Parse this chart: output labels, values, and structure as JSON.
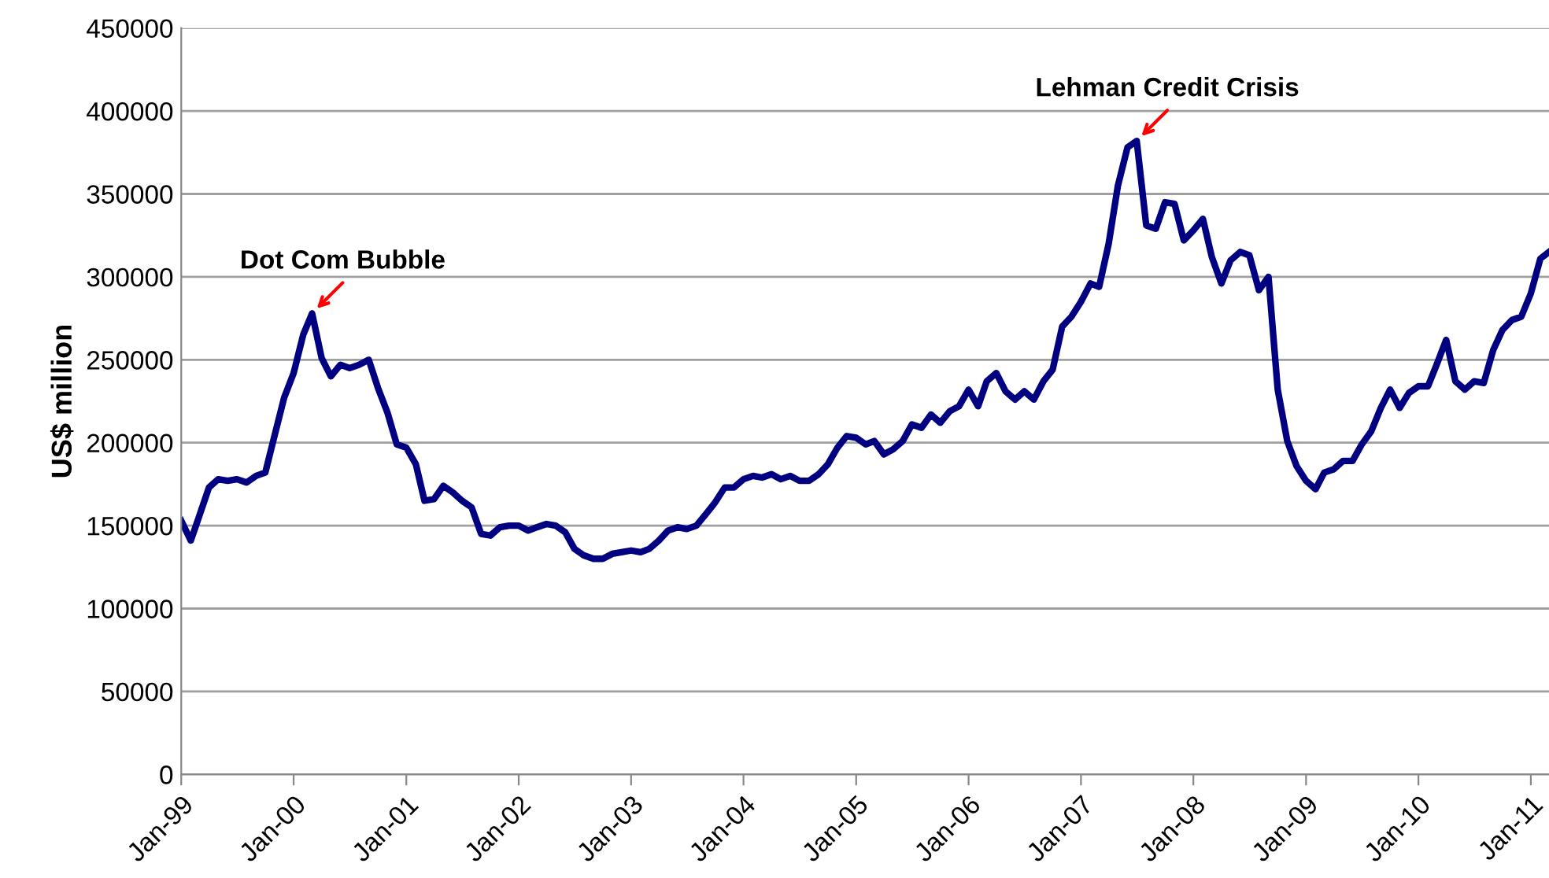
{
  "chart_data": {
    "type": "line",
    "ylabel": "US$ million",
    "x": [
      "1999-01",
      "1999-02",
      "1999-03",
      "1999-04",
      "1999-05",
      "1999-06",
      "1999-07",
      "1999-08",
      "1999-09",
      "1999-10",
      "1999-11",
      "1999-12",
      "2000-01",
      "2000-02",
      "2000-03",
      "2000-04",
      "2000-05",
      "2000-06",
      "2000-07",
      "2000-08",
      "2000-09",
      "2000-10",
      "2000-11",
      "2000-12",
      "2001-01",
      "2001-02",
      "2001-03",
      "2001-04",
      "2001-05",
      "2001-06",
      "2001-07",
      "2001-08",
      "2001-09",
      "2001-10",
      "2001-11",
      "2001-12",
      "2002-01",
      "2002-02",
      "2002-03",
      "2002-04",
      "2002-05",
      "2002-06",
      "2002-07",
      "2002-08",
      "2002-09",
      "2002-10",
      "2002-11",
      "2002-12",
      "2003-01",
      "2003-02",
      "2003-03",
      "2003-04",
      "2003-05",
      "2003-06",
      "2003-07",
      "2003-08",
      "2003-09",
      "2003-10",
      "2003-11",
      "2003-12",
      "2004-01",
      "2004-02",
      "2004-03",
      "2004-04",
      "2004-05",
      "2004-06",
      "2004-07",
      "2004-08",
      "2004-09",
      "2004-10",
      "2004-11",
      "2004-12",
      "2005-01",
      "2005-02",
      "2005-03",
      "2005-04",
      "2005-05",
      "2005-06",
      "2005-07",
      "2005-08",
      "2005-09",
      "2005-10",
      "2005-11",
      "2005-12",
      "2006-01",
      "2006-02",
      "2006-03",
      "2006-04",
      "2006-05",
      "2006-06",
      "2006-07",
      "2006-08",
      "2006-09",
      "2006-10",
      "2006-11",
      "2006-12",
      "2007-01",
      "2007-02",
      "2007-03",
      "2007-04",
      "2007-05",
      "2007-06",
      "2007-07",
      "2007-08",
      "2007-09",
      "2007-10",
      "2007-11",
      "2007-12",
      "2008-01",
      "2008-02",
      "2008-03",
      "2008-04",
      "2008-05",
      "2008-06",
      "2008-07",
      "2008-08",
      "2008-09",
      "2008-10",
      "2008-11",
      "2008-12",
      "2009-01",
      "2009-02",
      "2009-03",
      "2009-04",
      "2009-05",
      "2009-06",
      "2009-07",
      "2009-08",
      "2009-09",
      "2009-10",
      "2009-11",
      "2009-12",
      "2010-01",
      "2010-02",
      "2010-03",
      "2010-04",
      "2010-05",
      "2010-06",
      "2010-07",
      "2010-08",
      "2010-09",
      "2010-10",
      "2010-11",
      "2010-12",
      "2011-01",
      "2011-02",
      "2011-03"
    ],
    "series": [
      {
        "color": "#000080",
        "values": [
          153000,
          141000,
          156000,
          173000,
          178000,
          177000,
          178000,
          176000,
          180000,
          182000,
          205000,
          227000,
          242000,
          265000,
          278000,
          251000,
          240000,
          247000,
          245000,
          247000,
          250000,
          233000,
          218000,
          199000,
          197000,
          187000,
          165000,
          166000,
          174000,
          170000,
          165000,
          161000,
          145000,
          144000,
          149000,
          150000,
          150000,
          147000,
          149000,
          151000,
          150000,
          146000,
          136000,
          132000,
          130000,
          130000,
          133000,
          134000,
          135000,
          134000,
          136000,
          141000,
          147000,
          149000,
          148000,
          150000,
          157000,
          164000,
          173000,
          173000,
          178000,
          180000,
          179000,
          181000,
          178000,
          180000,
          177000,
          177000,
          181000,
          187000,
          197000,
          204000,
          203000,
          199000,
          201000,
          193000,
          196000,
          201000,
          211000,
          209000,
          217000,
          212000,
          219000,
          222000,
          232000,
          222000,
          237000,
          242000,
          231000,
          226000,
          231000,
          226000,
          237000,
          244000,
          270000,
          276000,
          285000,
          296000,
          294000,
          320000,
          355000,
          378000,
          382000,
          331000,
          329000,
          345000,
          344000,
          322000,
          328000,
          335000,
          312000,
          296000,
          310000,
          315000,
          313000,
          292000,
          300000,
          232000,
          201000,
          186000,
          177000,
          172000,
          182000,
          184000,
          189000,
          189000,
          199000,
          207000,
          221000,
          232000,
          221000,
          230000,
          234000,
          234000,
          247000,
          262000,
          237000,
          232000,
          237000,
          236000,
          256000,
          268000,
          274000,
          276000,
          290000,
          311000,
          315000
        ]
      }
    ],
    "xlim": [
      "1999-01",
      "2011-03"
    ],
    "xticks": [
      {
        "value": "1999-01",
        "label": "Jan-99"
      },
      {
        "value": "2000-01",
        "label": "Jan-00"
      },
      {
        "value": "2001-01",
        "label": "Jan-01"
      },
      {
        "value": "2002-01",
        "label": "Jan-02"
      },
      {
        "value": "2003-01",
        "label": "Jan-03"
      },
      {
        "value": "2004-01",
        "label": "Jan-04"
      },
      {
        "value": "2005-01",
        "label": "Jan-05"
      },
      {
        "value": "2006-01",
        "label": "Jan-06"
      },
      {
        "value": "2007-01",
        "label": "Jan-07"
      },
      {
        "value": "2008-01",
        "label": "Jan-08"
      },
      {
        "value": "2009-01",
        "label": "Jan-09"
      },
      {
        "value": "2010-01",
        "label": "Jan-10"
      },
      {
        "value": "2011-01",
        "label": "Jan-11"
      }
    ],
    "ylim": [
      0,
      450000
    ],
    "yticks": [
      0,
      50000,
      100000,
      150000,
      200000,
      250000,
      300000,
      350000,
      400000,
      450000
    ],
    "grid": "y",
    "annotations": [
      {
        "text": "Dot Com Bubble",
        "x": "2000-03",
        "y": 278000
      },
      {
        "text": "Lehman Credit Crisis",
        "x": "2007-07",
        "y": 382000
      }
    ]
  }
}
